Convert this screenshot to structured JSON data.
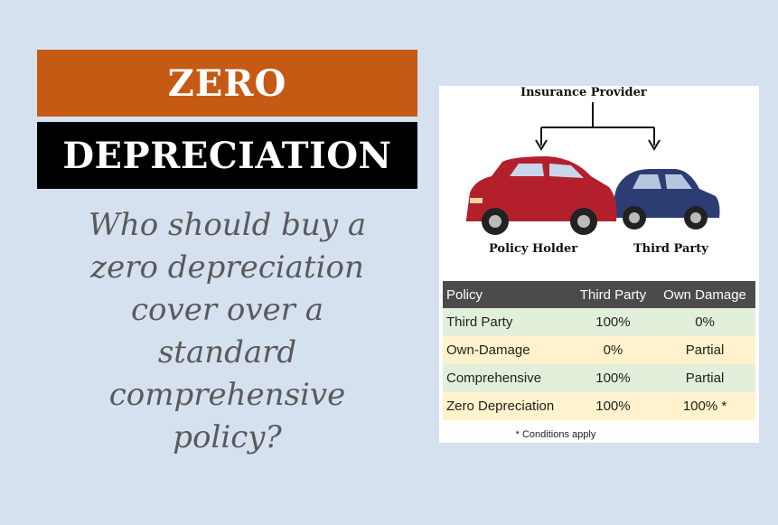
{
  "banner": {
    "line1": "ZERO",
    "line2": "DEPRECIATION"
  },
  "question": {
    "lines": [
      "Who should buy a",
      "zero depreciation",
      "cover over a",
      "standard",
      "comprehensive",
      "policy?"
    ]
  },
  "diagram": {
    "top_label": "Insurance Provider",
    "left_label": "Policy Holder",
    "right_label": "Third Party"
  },
  "table": {
    "headers": [
      "Policy",
      "Third Party",
      "Own Damage"
    ],
    "rows": [
      {
        "policy": "Third Party",
        "third_party": "100%",
        "own_damage": "0%"
      },
      {
        "policy": "Own-Damage",
        "third_party": "0%",
        "own_damage": "Partial"
      },
      {
        "policy": "Comprehensive",
        "third_party": "100%",
        "own_damage": "Partial"
      },
      {
        "policy": "Zero Depreciation",
        "third_party": "100%",
        "own_damage": "100% *"
      }
    ],
    "footnote": "* Conditions apply"
  },
  "colors": {
    "background": "#d6e1f0",
    "banner_top": "#c55a14",
    "banner_bottom": "#000000",
    "table_header": "#4b4b4b",
    "row_green": "#e2efda",
    "row_yellow": "#fff2cc",
    "car_red": "#b3202c",
    "car_blue": "#2c3d73"
  }
}
